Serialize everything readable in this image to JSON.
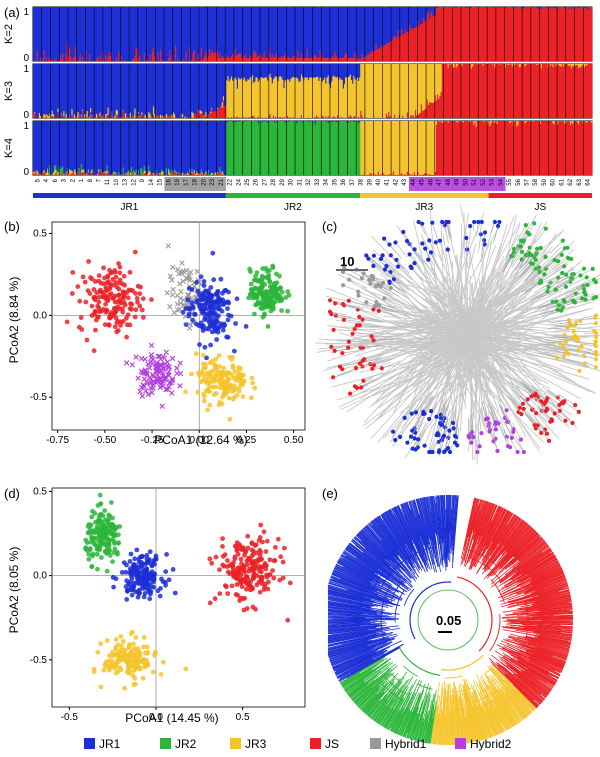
{
  "colors": {
    "JR1": "#1c2fd6",
    "JR2": "#2bb63a",
    "JR3": "#f5c42c",
    "JS": "#ec2127",
    "Hybrid1": "#999999",
    "Hybrid2": "#b43ee0",
    "tree_gray": "#c8c8c8"
  },
  "legend": {
    "items": [
      {
        "name": "JR1",
        "key": "JR1",
        "marker": "square"
      },
      {
        "name": "JR2",
        "key": "JR2",
        "marker": "square"
      },
      {
        "name": "JR3",
        "key": "JR3",
        "marker": "square"
      },
      {
        "name": "JS",
        "key": "JS",
        "marker": "square"
      },
      {
        "name": "Hybrid1",
        "key": "Hybrid1",
        "marker": "square"
      },
      {
        "name": "Hybrid2",
        "key": "Hybrid2",
        "marker": "square"
      }
    ]
  },
  "chart_data": [
    {
      "panel": "(a)",
      "type": "bar",
      "subtype": "stacked-admixture",
      "rows": [
        {
          "k_label": "K=2",
          "yticks": [
            "0",
            "1"
          ]
        },
        {
          "k_label": "K=3",
          "yticks": [
            "0",
            "1"
          ]
        },
        {
          "k_label": "K=4",
          "yticks": [
            "0",
            "1"
          ]
        }
      ],
      "population_labels": [
        "5",
        "4",
        "6",
        "3",
        "2",
        "1",
        "8",
        "7",
        "11",
        "10",
        "13",
        "12",
        "9",
        "14",
        "15",
        "16",
        "19",
        "17",
        "18",
        "20",
        "23",
        "21",
        "22",
        "24",
        "25",
        "26",
        "27",
        "28",
        "29",
        "30",
        "31",
        "32",
        "33",
        "34",
        "35",
        "36",
        "37",
        "38",
        "39",
        "40",
        "41",
        "42",
        "43",
        "44",
        "45",
        "46",
        "47",
        "48",
        "49",
        "50",
        "51",
        "52",
        "53",
        "54",
        "55",
        "56",
        "57",
        "58",
        "59",
        "60",
        "61",
        "62",
        "63",
        "64"
      ],
      "groups": [
        {
          "name": "JR1",
          "key": "JR1"
        },
        {
          "name": "JR2",
          "key": "JR2"
        },
        {
          "name": "JR3",
          "key": "JR3"
        },
        {
          "name": "JS",
          "key": "JS"
        }
      ]
    },
    {
      "panel": "(b)",
      "type": "scatter",
      "xlabel": "PCoA1 (12.64 %)",
      "ylabel": "PCoA2 (8.84 %)",
      "xlim": [
        -0.78,
        0.56
      ],
      "ylim": [
        -0.7,
        0.57
      ],
      "xticks": [
        "-0.75",
        "-0.50",
        "-0.25",
        "0.00",
        "0.25",
        "0.50"
      ],
      "yticks": [
        "-0.5",
        "0.0",
        "0.5"
      ],
      "series": [
        {
          "name": "JS",
          "key": "JS",
          "marker": "circle",
          "center": [
            -0.47,
            0.1
          ],
          "spread": [
            0.11,
            0.14
          ],
          "n": 170
        },
        {
          "name": "Hybrid1",
          "key": "Hybrid1",
          "marker": "x",
          "center": [
            -0.06,
            0.13
          ],
          "spread": [
            0.07,
            0.11
          ],
          "n": 80
        },
        {
          "name": "JR1",
          "key": "JR1",
          "marker": "circle",
          "center": [
            0.05,
            0.03
          ],
          "spread": [
            0.08,
            0.13
          ],
          "n": 170
        },
        {
          "name": "JR2",
          "key": "JR2",
          "marker": "circle",
          "center": [
            0.36,
            0.14
          ],
          "spread": [
            0.06,
            0.09
          ],
          "n": 160
        },
        {
          "name": "Hybrid2",
          "key": "Hybrid2",
          "marker": "x",
          "center": [
            -0.23,
            -0.35
          ],
          "spread": [
            0.07,
            0.09
          ],
          "n": 110
        },
        {
          "name": "JR3",
          "key": "JR3",
          "marker": "circle",
          "center": [
            0.12,
            -0.4
          ],
          "spread": [
            0.09,
            0.1
          ],
          "n": 150
        }
      ]
    },
    {
      "panel": "(c)",
      "type": "scatter",
      "subtype": "minimum-spanning-network",
      "scale_label": "10",
      "series": [
        {
          "name": "JR1",
          "key": "JR1",
          "arc_deg": [
            [
              215,
              285
            ],
            [
              95,
              125
            ]
          ],
          "n": 110
        },
        {
          "name": "JR2",
          "key": "JR2",
          "arc_deg": [
            [
              295,
              345
            ]
          ],
          "n": 90
        },
        {
          "name": "JR3",
          "key": "JR3",
          "arc_deg": [
            [
              350,
              20
            ]
          ],
          "n": 40
        },
        {
          "name": "JS",
          "key": "JS",
          "arc_deg": [
            [
              150,
              200
            ],
            [
              35,
              60
            ]
          ],
          "n": 90
        },
        {
          "name": "Hybrid1",
          "key": "Hybrid1",
          "arc_deg": [
            [
              195,
              215
            ]
          ],
          "n": 25
        },
        {
          "name": "Hybrid2",
          "key": "Hybrid2",
          "arc_deg": [
            [
              65,
              90
            ]
          ],
          "n": 35
        }
      ]
    },
    {
      "panel": "(d)",
      "type": "scatter",
      "xlabel": "PCoA1 (14.45 %)",
      "ylabel": "PCoA2 (8.05 %)",
      "xlim": [
        -0.6,
        0.86
      ],
      "ylim": [
        -0.78,
        0.52
      ],
      "xticks": [
        "-0.5",
        "0.0",
        "0.5"
      ],
      "yticks": [
        "-0.5",
        "0.0",
        "0.5"
      ],
      "series": [
        {
          "name": "JR2",
          "key": "JR2",
          "marker": "circle",
          "center": [
            -0.3,
            0.23
          ],
          "spread": [
            0.07,
            0.1
          ],
          "n": 160
        },
        {
          "name": "JR1",
          "key": "JR1",
          "marker": "circle",
          "center": [
            -0.08,
            0.0
          ],
          "spread": [
            0.08,
            0.08
          ],
          "n": 170
        },
        {
          "name": "JS",
          "key": "JS",
          "marker": "circle",
          "center": [
            0.53,
            0.03
          ],
          "spread": [
            0.12,
            0.13
          ],
          "n": 200
        },
        {
          "name": "JR3",
          "key": "JR3",
          "marker": "circle",
          "center": [
            -0.15,
            -0.5
          ],
          "spread": [
            0.1,
            0.08
          ],
          "n": 160
        }
      ]
    },
    {
      "panel": "(e)",
      "type": "other",
      "subtype": "radial-tree",
      "scale_label": "0.05",
      "clades": [
        {
          "name": "JR1",
          "key": "JR1",
          "arc_deg": [
            150,
            275
          ]
        },
        {
          "name": "JS",
          "key": "JS",
          "arc_deg": [
            282,
            405
          ]
        },
        {
          "name": "JR3",
          "key": "JR3",
          "arc_deg": [
            405,
            458
          ]
        },
        {
          "name": "JR2",
          "key": "JR2",
          "arc_deg": [
            458,
            510
          ]
        }
      ]
    }
  ]
}
